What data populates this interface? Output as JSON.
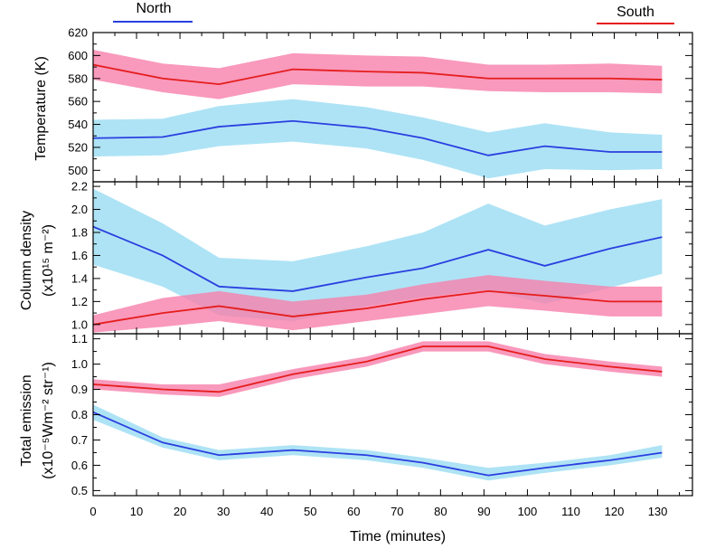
{
  "chart_data": [
    {
      "type": "line",
      "id": "temperature",
      "ylabel": "Temperature (K)",
      "ylim": [
        490,
        620
      ],
      "yticks": [
        500,
        520,
        540,
        560,
        580,
        600,
        620
      ],
      "xlim": [
        0,
        138
      ],
      "x": [
        0,
        16,
        29,
        46,
        63,
        76,
        91,
        104,
        119,
        131
      ],
      "series": [
        {
          "name": "North",
          "color": "#2a3fe0",
          "band_color": "#aee3f5",
          "values": [
            528,
            529,
            538,
            543,
            537,
            528,
            513,
            521,
            516,
            516
          ],
          "lower": [
            512,
            513,
            521,
            525,
            519,
            509,
            493,
            501,
            500,
            501
          ],
          "upper": [
            544,
            545,
            556,
            562,
            555,
            546,
            533,
            541,
            533,
            531
          ]
        },
        {
          "name": "South",
          "color": "#e51d1d",
          "band_color": "#f77fab",
          "values": [
            592,
            580,
            575,
            588,
            586,
            585,
            580,
            580,
            580,
            579
          ],
          "lower": [
            579,
            568,
            562,
            575,
            573,
            573,
            569,
            568,
            568,
            567
          ],
          "upper": [
            605,
            593,
            589,
            602,
            600,
            599,
            592,
            592,
            593,
            591
          ]
        }
      ]
    },
    {
      "type": "line",
      "id": "column-density",
      "ylabel": "Column density",
      "ylabel_line2": "(x10¹⁵ m⁻²)",
      "ylim": [
        0.92,
        2.24
      ],
      "yticks": [
        1.0,
        1.2,
        1.4,
        1.6,
        1.8,
        2.0,
        2.2
      ],
      "xlim": [
        0,
        138
      ],
      "x": [
        0,
        16,
        29,
        46,
        63,
        76,
        91,
        104,
        119,
        131
      ],
      "series": [
        {
          "name": "North",
          "color": "#2a3fe0",
          "band_color": "#aee3f5",
          "values": [
            1.85,
            1.6,
            1.33,
            1.29,
            1.41,
            1.49,
            1.65,
            1.51,
            1.66,
            1.76
          ],
          "lower": [
            1.52,
            1.33,
            1.08,
            1.03,
            1.16,
            1.24,
            1.3,
            1.18,
            1.32,
            1.44
          ],
          "upper": [
            2.18,
            1.88,
            1.58,
            1.55,
            1.68,
            1.8,
            2.05,
            1.86,
            2.0,
            2.09
          ]
        },
        {
          "name": "South",
          "color": "#e51d1d",
          "band_color": "#f77fab",
          "values": [
            1.0,
            1.1,
            1.16,
            1.07,
            1.14,
            1.22,
            1.29,
            1.25,
            1.2,
            1.2
          ],
          "lower": [
            0.93,
            0.98,
            1.03,
            0.95,
            1.03,
            1.09,
            1.16,
            1.12,
            1.07,
            1.07
          ],
          "upper": [
            1.08,
            1.23,
            1.29,
            1.2,
            1.26,
            1.35,
            1.43,
            1.38,
            1.33,
            1.33
          ]
        }
      ]
    },
    {
      "type": "line",
      "id": "total-emission",
      "ylabel": "Total emission",
      "ylabel_line2": "(x10⁻⁵Wm⁻² str⁻¹)",
      "ylim": [
        0.48,
        1.12
      ],
      "yticks": [
        0.5,
        0.6,
        0.7,
        0.8,
        0.9,
        1.0,
        1.1
      ],
      "xlim": [
        0,
        138
      ],
      "xticks": [
        0,
        10,
        20,
        30,
        40,
        50,
        60,
        70,
        80,
        90,
        100,
        110,
        120,
        130
      ],
      "xlabel": "Time (minutes)",
      "x": [
        0,
        16,
        29,
        46,
        63,
        76,
        91,
        104,
        119,
        131
      ],
      "series": [
        {
          "name": "North",
          "color": "#2a3fe0",
          "band_color": "#aee3f5",
          "values": [
            0.81,
            0.69,
            0.64,
            0.66,
            0.64,
            0.61,
            0.56,
            0.59,
            0.62,
            0.65
          ],
          "lower": [
            0.78,
            0.67,
            0.62,
            0.64,
            0.62,
            0.59,
            0.54,
            0.57,
            0.6,
            0.63
          ],
          "upper": [
            0.84,
            0.71,
            0.66,
            0.68,
            0.66,
            0.63,
            0.59,
            0.61,
            0.64,
            0.68
          ]
        },
        {
          "name": "South",
          "color": "#e51d1d",
          "band_color": "#f77fab",
          "values": [
            0.92,
            0.9,
            0.89,
            0.96,
            1.01,
            1.07,
            1.07,
            1.02,
            0.99,
            0.97
          ],
          "lower": [
            0.9,
            0.88,
            0.87,
            0.94,
            0.99,
            1.05,
            1.05,
            1.0,
            0.97,
            0.95
          ],
          "upper": [
            0.94,
            0.92,
            0.92,
            0.98,
            1.03,
            1.09,
            1.09,
            1.04,
            1.01,
            0.99
          ]
        }
      ]
    }
  ],
  "legend": {
    "north_label": "North",
    "south_label": "South",
    "north_color": "#2a3fe0",
    "south_color": "#e51d1d"
  }
}
